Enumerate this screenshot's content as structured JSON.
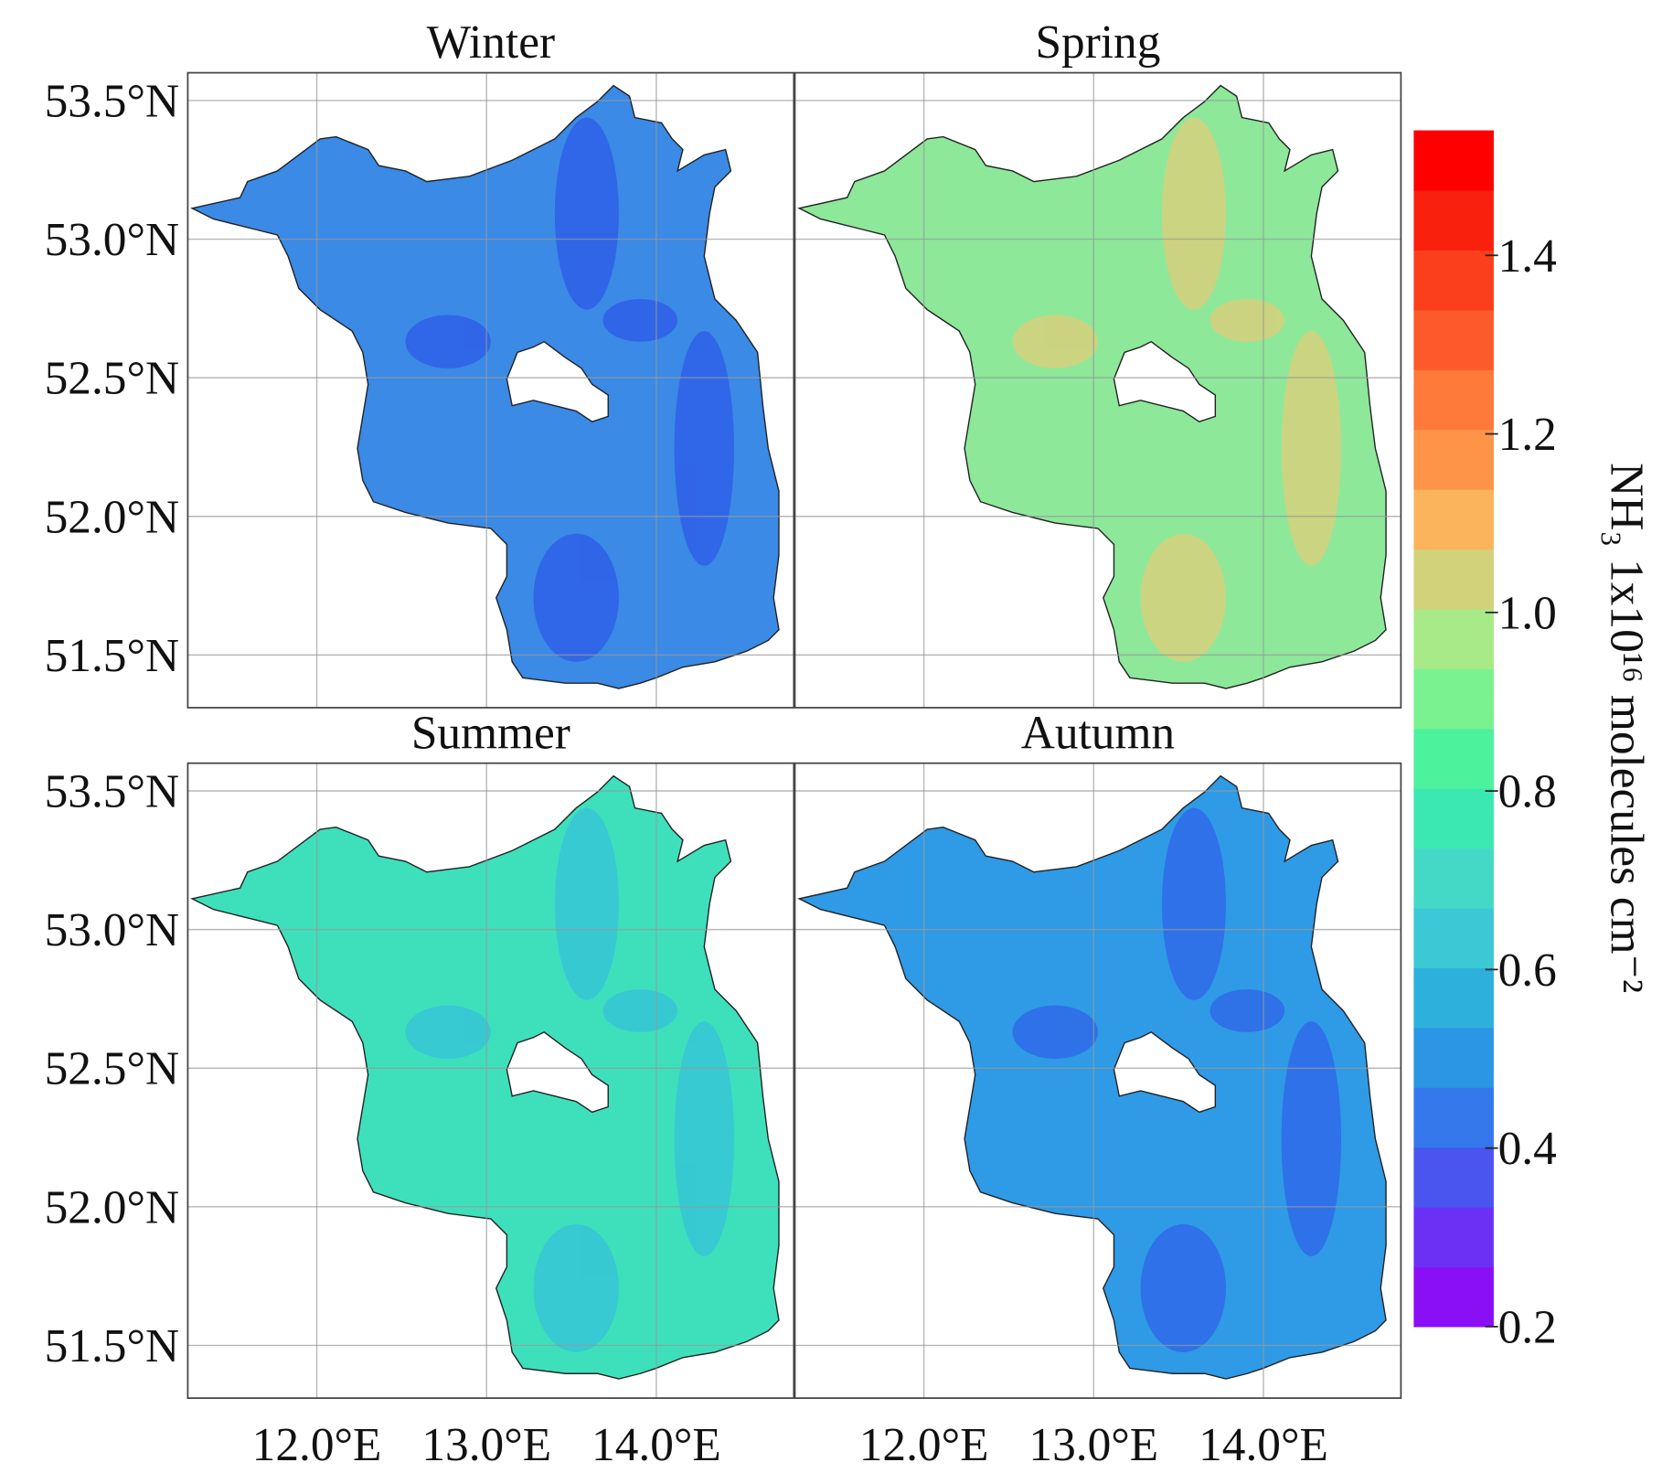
{
  "panels": [
    {
      "title": "Winter",
      "color": "#3a8ae6",
      "accent": "#2f5fe8"
    },
    {
      "title": "Spring",
      "color": "#8de89a",
      "accent": "#d6d07c"
    },
    {
      "title": "Summer",
      "color": "#3ee0bc",
      "accent": "#36c6d6"
    },
    {
      "title": "Autumn",
      "color": "#2f9ae6",
      "accent": "#2f6ae8"
    }
  ],
  "xlim": [
    11.24,
    14.81
  ],
  "xticks": [
    {
      "value": 12,
      "label": "12.0°E"
    },
    {
      "value": 13,
      "label": "13.0°E"
    },
    {
      "value": 14,
      "label": "14.0°E"
    }
  ],
  "ylim": [
    51.31,
    53.6
  ],
  "yticks": [
    {
      "value": 51.5,
      "label": "51.5°N"
    },
    {
      "value": 52,
      "label": "52.0°N"
    },
    {
      "value": 52.5,
      "label": "52.5°N"
    },
    {
      "value": 53,
      "label": "53.0°N"
    },
    {
      "value": 53.5,
      "label": "53.5°N"
    }
  ],
  "colorbar": {
    "label": "NH₃ 1x10¹⁶ molecules cm⁻²",
    "lim": [
      0.2,
      1.54
    ],
    "ticks": [
      0.2,
      0.4,
      0.6,
      0.8,
      {
        "value": 1,
        "label": "1.0"
      },
      1.2,
      1.4
    ],
    "colors": [
      "#8b0ff5",
      "#6a31f5",
      "#4a54ef",
      "#3478ec",
      "#2a96e4",
      "#2eb0dc",
      "#3cc8d4",
      "#43d9c6",
      "#3ce8b2",
      "#4cf29c",
      "#7af290",
      "#a8ea88",
      "#d2d27a",
      "#fcb45c",
      "#fd9448",
      "#fd7a3a",
      "#fc5a2a",
      "#fb3e1c",
      "#fa200e",
      "#ff0000"
    ]
  }
}
